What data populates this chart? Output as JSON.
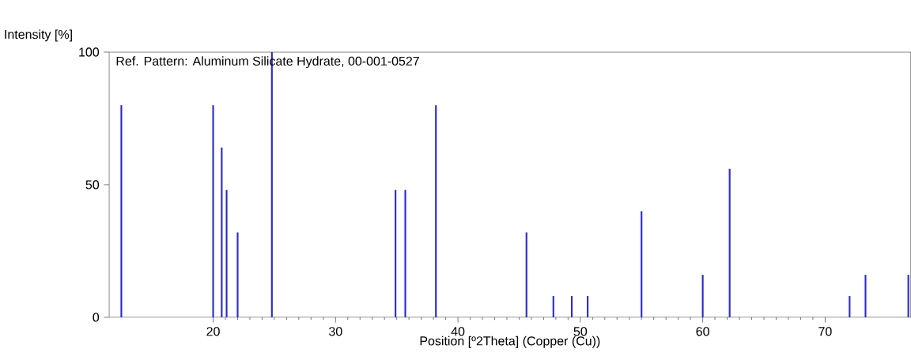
{
  "chart_data": {
    "type": "bar",
    "title": "Ref. Pattern: Aluminum Silicate Hydrate, 00-001-0527",
    "xlabel": "Position [º2Theta] (Copper (Cu))",
    "ylabel": "Intensity [%]",
    "x": [
      12.5,
      20.0,
      20.7,
      21.1,
      22.0,
      24.8,
      34.9,
      35.7,
      38.2,
      45.6,
      47.8,
      49.3,
      50.6,
      55.0,
      60.0,
      62.2,
      72.0,
      73.3,
      76.8
    ],
    "values": [
      80,
      80,
      64,
      48,
      32,
      100,
      48,
      48,
      80,
      32,
      8,
      8,
      8,
      40,
      16,
      56,
      8,
      16,
      16
    ],
    "color": "#2a2ad2",
    "xlim": [
      11.5,
      77.0
    ],
    "ylim": [
      0,
      100
    ],
    "xticks": [
      20,
      30,
      40,
      50,
      60,
      70
    ],
    "yticks": [
      0,
      50,
      100
    ],
    "grid": false
  }
}
